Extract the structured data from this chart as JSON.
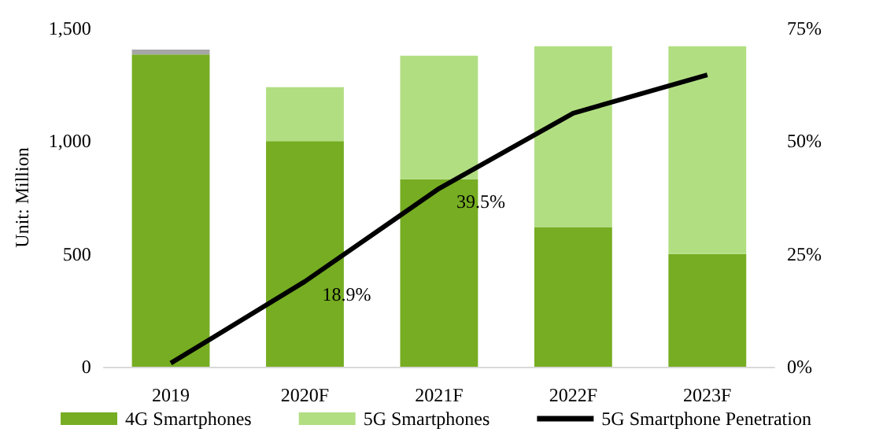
{
  "chart_data": {
    "type": "bar",
    "stacked": true,
    "ylabel": "Unit: Million",
    "categories": [
      "2019",
      "2020F",
      "2021F",
      "2022F",
      "2023F"
    ],
    "series": [
      {
        "name": "4G Smartphones",
        "color": "#76ad22",
        "values": [
          1384,
          1000,
          831,
          619,
          500
        ]
      },
      {
        "name": "5G Smartphones",
        "color": "#b2de82",
        "values": [
          0,
          239,
          548,
          802,
          921
        ]
      },
      {
        "color": "#a6a6a6",
        "values": [
          22,
          null,
          null,
          null,
          null
        ]
      },
      {
        "name": "5G Smartphone Penetration",
        "type": "line",
        "axis": "y2",
        "color": "#000000",
        "marker": "none",
        "values": [
          0.8,
          18.9,
          39.5,
          56.2,
          64.7
        ],
        "value_labels": [
          null,
          "18.9%",
          "39.5%",
          null,
          null
        ]
      }
    ],
    "ylim": [
      0,
      1500
    ],
    "yticks": [
      0,
      {
        "value": 500,
        "label": "500"
      },
      {
        "value": 1000,
        "label": "1,000"
      },
      {
        "value": 1500,
        "label": "1,500"
      }
    ],
    "y2lim": [
      0,
      75
    ],
    "y2ticks": [
      {
        "value": 0,
        "label": "0%"
      },
      {
        "value": 25,
        "label": "25%"
      },
      {
        "value": 50,
        "label": "50%"
      },
      {
        "value": 75,
        "label": "75%"
      }
    ],
    "grid": false,
    "legend": "bottom"
  }
}
